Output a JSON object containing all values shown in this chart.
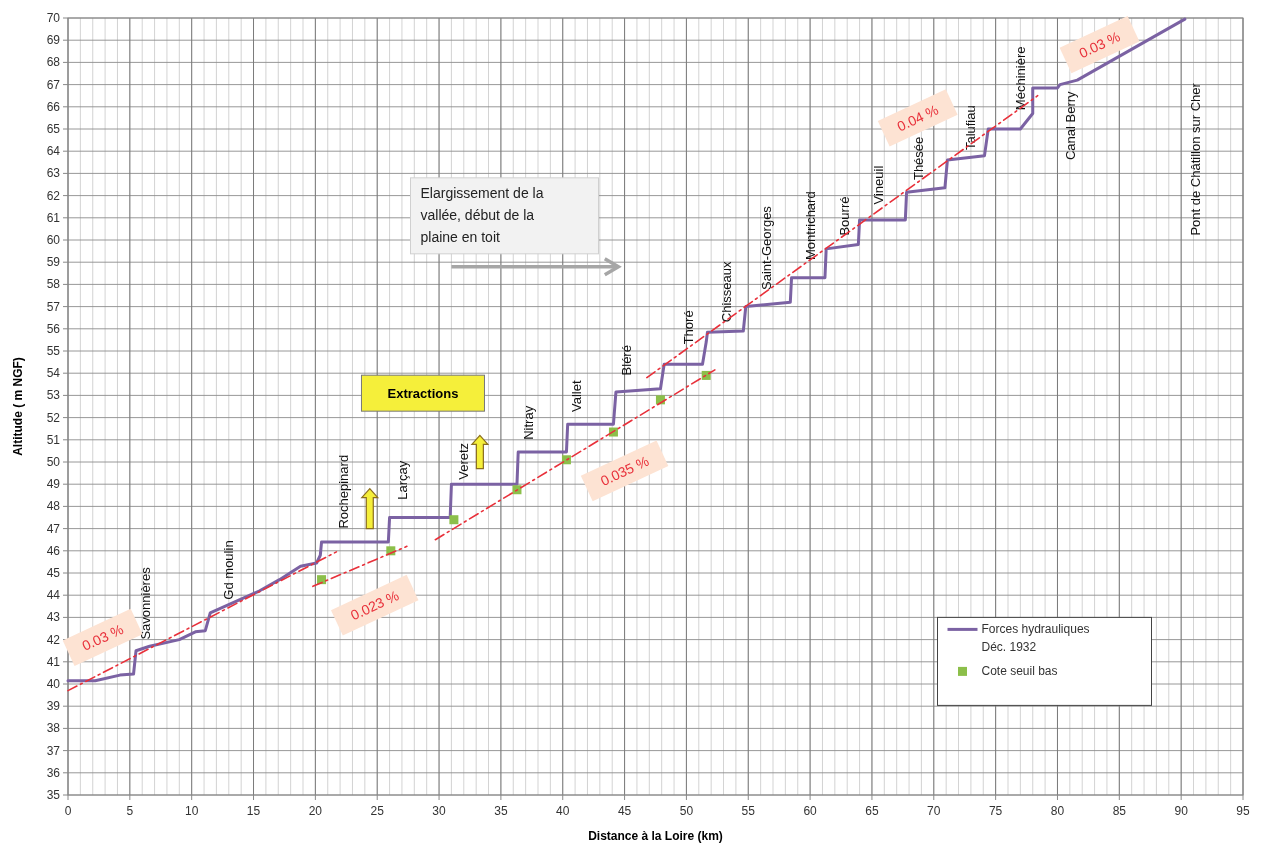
{
  "chart_data": {
    "type": "line",
    "xlabel": "Distance à la Loire (km)",
    "ylabel": "Altitude ( m NGF)",
    "xlim": [
      0,
      95
    ],
    "xticks": [
      0,
      5,
      10,
      15,
      20,
      25,
      30,
      35,
      40,
      45,
      50,
      55,
      60,
      65,
      70,
      75,
      80,
      85,
      90,
      95
    ],
    "ylim": [
      35,
      70
    ],
    "yticks": [
      35,
      36,
      37,
      38,
      39,
      40,
      41,
      42,
      43,
      44,
      45,
      46,
      47,
      48,
      49,
      50,
      51,
      52,
      53,
      54,
      55,
      56,
      57,
      58,
      59,
      60,
      61,
      62,
      63,
      64,
      65,
      66,
      67,
      68,
      69,
      70
    ],
    "grid": true,
    "legend": "bottom right",
    "marker": "none",
    "line_style": "solid",
    "series": [
      {
        "name": "Forces hydrauliques Déc. 1932",
        "color": "#7b62a3",
        "x": [
          0,
          2.2,
          4.2,
          5.3,
          5.5,
          6.6,
          9.0,
          10.3,
          11.1,
          11.5,
          13.9,
          15.5,
          17.1,
          18.8,
          20.1,
          20.4,
          20.5,
          25.9,
          26.0,
          30.9,
          31.0,
          36.3,
          36.4,
          40.3,
          40.4,
          44.1,
          44.3,
          47.9,
          48.2,
          51.3,
          51.6,
          51.7,
          54.6,
          54.8,
          58.4,
          58.5,
          61.2,
          61.3,
          63.9,
          64.0,
          67.7,
          67.8,
          70.9,
          71.1,
          74.1,
          74.4,
          77.0,
          78.0,
          78.0,
          80.0,
          80.2,
          81.6,
          90.3
        ],
        "values": [
          40.15,
          40.15,
          40.4,
          40.45,
          41.5,
          41.7,
          42.0,
          42.35,
          42.4,
          43.2,
          43.8,
          44.2,
          44.7,
          45.3,
          45.45,
          45.8,
          46.4,
          46.4,
          47.5,
          47.5,
          49.0,
          49.0,
          50.45,
          50.45,
          51.7,
          51.7,
          53.15,
          53.3,
          54.4,
          54.4,
          55.4,
          55.85,
          55.9,
          57.0,
          57.2,
          58.3,
          58.3,
          59.6,
          59.8,
          60.9,
          60.9,
          62.15,
          62.35,
          63.6,
          63.8,
          65.0,
          65.0,
          65.7,
          66.85,
          66.85,
          67.0,
          67.2,
          69.95
        ]
      },
      {
        "name": "Cote seuil bas",
        "type": "scatter",
        "marker": "square",
        "color": "#8cbf4a",
        "x": [
          20.5,
          26.1,
          31.2,
          36.3,
          40.3,
          44.1,
          47.9,
          51.6
        ],
        "values": [
          44.7,
          46.0,
          47.4,
          48.75,
          50.1,
          51.35,
          52.8,
          53.9
        ]
      },
      {
        "type": "line",
        "color": "#e8303a",
        "line_style": "dashed",
        "x": [
          0,
          21.7
        ],
        "values": [
          39.7,
          45.95
        ]
      },
      {
        "type": "line",
        "color": "#e8303a",
        "line_style": "dashed",
        "x": [
          19.8,
          27.4
        ],
        "values": [
          44.4,
          46.2
        ]
      },
      {
        "type": "line",
        "color": "#e8303a",
        "line_style": "dashed",
        "x": [
          29.7,
          52.3
        ],
        "values": [
          46.5,
          54.15
        ]
      },
      {
        "type": "line",
        "color": "#e8303a",
        "line_style": "dashed",
        "x": [
          46.8,
          78.4
        ],
        "values": [
          53.8,
          66.5
        ]
      }
    ],
    "annotations": [
      "Savonnières",
      "Gd  moulin",
      "Rochepinard",
      "Larçay",
      "Veretz",
      "Nitray",
      "Vallet",
      "Bléré",
      "Thoré",
      "Chisseaux",
      "Saint-Georges",
      "Montrichard",
      "Bourré",
      "Vineuil",
      "Thésée",
      "Talufiau",
      "Méchinière",
      "Canal Berry",
      "Pont de Châtillon sur Cher",
      "0.03 %",
      "0.023 %",
      "0.035 %",
      "0.04 %",
      "0.03 %",
      "Extractions",
      "Elargissement de la vallée, début de la plaine en toit"
    ]
  }
}
